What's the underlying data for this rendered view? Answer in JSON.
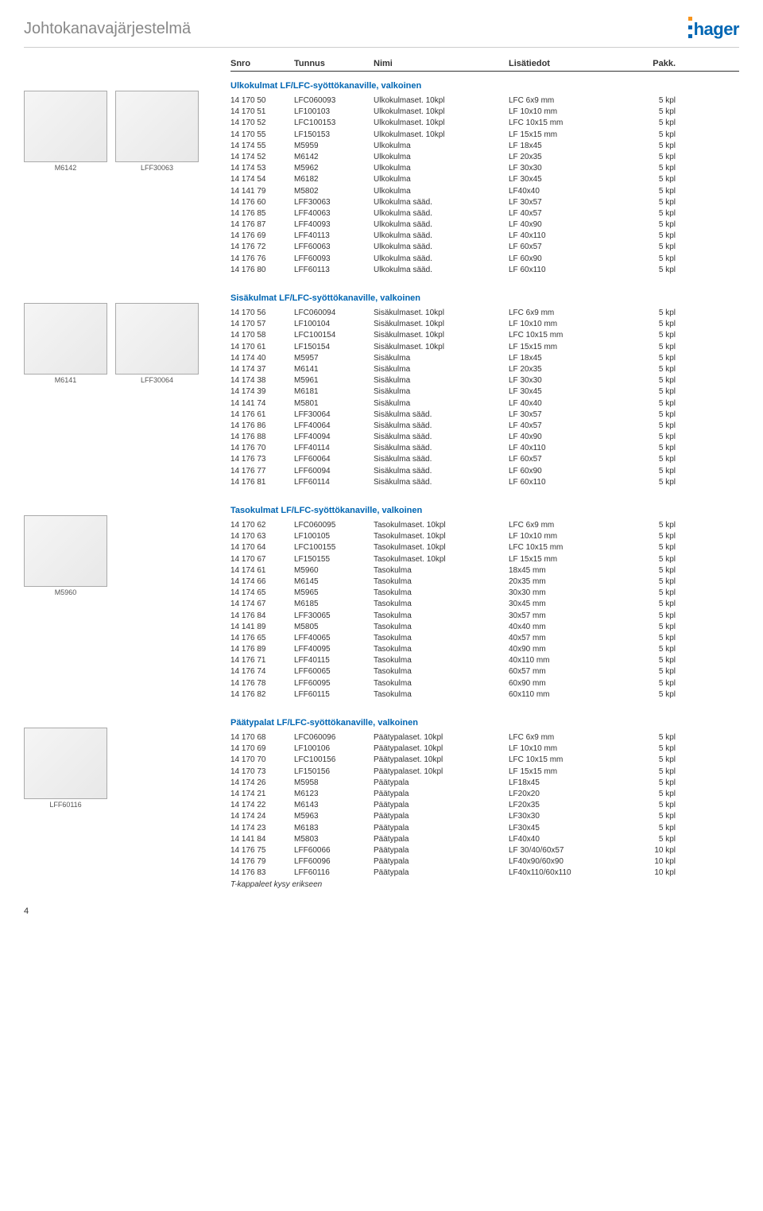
{
  "brand": "hager",
  "page_title": "Johtokanavajärjestelmä",
  "columns": {
    "snro": "Snro",
    "tunnus": "Tunnus",
    "nimi": "Nimi",
    "lisa": "Lisätiedot",
    "pakk": "Pakk."
  },
  "page_number": "4",
  "sections": [
    {
      "title": "Ulkokulmat LF/LFC-syöttökanaville, valkoinen",
      "images": [
        {
          "cap": "M6142"
        },
        {
          "cap": "LFF30063"
        }
      ],
      "rows": [
        [
          "14 170 50",
          "LFC060093",
          "Ulkokulmaset. 10kpl",
          "LFC 6x9 mm",
          "5 kpl"
        ],
        [
          "14 170 51",
          "LF100103",
          "Ulkokulmaset. 10kpl",
          "LF 10x10 mm",
          "5 kpl"
        ],
        [
          "14 170 52",
          "LFC100153",
          "Ulkokulmaset. 10kpl",
          "LFC 10x15 mm",
          "5 kpl"
        ],
        [
          "14 170 55",
          "LF150153",
          "Ulkokulmaset. 10kpl",
          "LF 15x15 mm",
          "5 kpl"
        ],
        [
          "14 174 55",
          "M5959",
          "Ulkokulma",
          "LF 18x45",
          "5 kpl"
        ],
        [
          "14 174 52",
          "M6142",
          "Ulkokulma",
          "LF 20x35",
          "5 kpl"
        ],
        [
          "14 174 53",
          "M5962",
          "Ulkokulma",
          "LF 30x30",
          "5 kpl"
        ],
        [
          "14 174 54",
          "M6182",
          "Ulkokulma",
          "LF 30x45",
          "5 kpl"
        ],
        [
          "14 141 79",
          "M5802",
          "Ulkokulma",
          "LF40x40",
          "5 kpl"
        ],
        [
          "14 176 60",
          "LFF30063",
          "Ulkokulma sääd.",
          "LF 30x57",
          "5 kpl"
        ],
        [
          "14 176 85",
          "LFF40063",
          "Ulkokulma sääd.",
          "LF 40x57",
          "5 kpl"
        ],
        [
          "14 176 87",
          "LFF40093",
          "Ulkokulma sääd.",
          "LF 40x90",
          "5 kpl"
        ],
        [
          "14 176 69",
          "LFF40113",
          "Ulkokulma sääd.",
          "LF 40x110",
          "5 kpl"
        ],
        [
          "14 176 72",
          "LFF60063",
          "Ulkokulma sääd.",
          "LF 60x57",
          "5 kpl"
        ],
        [
          "14 176 76",
          "LFF60093",
          "Ulkokulma sääd.",
          "LF 60x90",
          "5 kpl"
        ],
        [
          "14 176 80",
          "LFF60113",
          "Ulkokulma sääd.",
          "LF 60x110",
          "5 kpl"
        ]
      ]
    },
    {
      "title": "Sisäkulmat LF/LFC-syöttökanaville, valkoinen",
      "images": [
        {
          "cap": "M6141"
        },
        {
          "cap": "LFF30064"
        }
      ],
      "rows": [
        [
          "14 170 56",
          "LFC060094",
          "Sisäkulmaset. 10kpl",
          "LFC 6x9 mm",
          "5 kpl"
        ],
        [
          "14 170 57",
          "LF100104",
          "Sisäkulmaset. 10kpl",
          "LF 10x10 mm",
          "5 kpl"
        ],
        [
          "14 170 58",
          "LFC100154",
          "Sisäkulmaset. 10kpl",
          "LFC 10x15 mm",
          "5 kpl"
        ],
        [
          "14 170 61",
          "LF150154",
          "Sisäkulmaset. 10kpl",
          "LF 15x15 mm",
          "5 kpl"
        ],
        [
          "14 174 40",
          "M5957",
          "Sisäkulma",
          "LF 18x45",
          "5 kpl"
        ],
        [
          "14 174 37",
          "M6141",
          "Sisäkulma",
          "LF 20x35",
          "5 kpl"
        ],
        [
          "14 174 38",
          "M5961",
          "Sisäkulma",
          "LF 30x30",
          "5 kpl"
        ],
        [
          "14 174 39",
          "M6181",
          "Sisäkulma",
          "LF 30x45",
          "5 kpl"
        ],
        [
          "14 141 74",
          "M5801",
          "Sisäkulma",
          "LF 40x40",
          "5 kpl"
        ],
        [
          "14 176 61",
          "LFF30064",
          "Sisäkulma sääd.",
          "LF 30x57",
          "5 kpl"
        ],
        [
          "14 176 86",
          "LFF40064",
          "Sisäkulma sääd.",
          "LF 40x57",
          "5 kpl"
        ],
        [
          "14 176 88",
          "LFF40094",
          "Sisäkulma sääd.",
          "LF 40x90",
          "5 kpl"
        ],
        [
          "14 176 70",
          "LFF40114",
          "Sisäkulma sääd.",
          "LF 40x110",
          "5 kpl"
        ],
        [
          "14 176 73",
          "LFF60064",
          "Sisäkulma sääd.",
          "LF 60x57",
          "5 kpl"
        ],
        [
          "14 176 77",
          "LFF60094",
          "Sisäkulma sääd.",
          "LF 60x90",
          "5 kpl"
        ],
        [
          "14 176 81",
          "LFF60114",
          "Sisäkulma sääd.",
          "LF 60x110",
          "5 kpl"
        ]
      ]
    },
    {
      "title": "Tasokulmat LF/LFC-syöttökanaville, valkoinen",
      "images": [
        {
          "cap": "M5960"
        }
      ],
      "rows": [
        [
          "14 170 62",
          "LFC060095",
          "Tasokulmaset. 10kpl",
          "LFC 6x9 mm",
          "5 kpl"
        ],
        [
          "14 170 63",
          "LF100105",
          "Tasokulmaset. 10kpl",
          "LF 10x10 mm",
          "5 kpl"
        ],
        [
          "14 170 64",
          "LFC100155",
          "Tasokulmaset. 10kpl",
          "LFC 10x15 mm",
          "5 kpl"
        ],
        [
          "14 170 67",
          "LF150155",
          "Tasokulmaset. 10kpl",
          "LF 15x15 mm",
          "5 kpl"
        ],
        [
          "14 174 61",
          "M5960",
          "Tasokulma",
          "18x45 mm",
          "5 kpl"
        ],
        [
          "14 174 66",
          "M6145",
          "Tasokulma",
          "20x35 mm",
          "5 kpl"
        ],
        [
          "14 174 65",
          "M5965",
          "Tasokulma",
          "30x30 mm",
          "5 kpl"
        ],
        [
          "14 174 67",
          "M6185",
          "Tasokulma",
          "30x45 mm",
          "5 kpl"
        ],
        [
          "14 176 84",
          "LFF30065",
          "Tasokulma",
          "30x57 mm",
          "5 kpl"
        ],
        [
          "14 141 89",
          "M5805",
          "Tasokulma",
          "40x40 mm",
          "5 kpl"
        ],
        [
          "14 176 65",
          "LFF40065",
          "Tasokulma",
          "40x57 mm",
          "5 kpl"
        ],
        [
          "14 176 89",
          "LFF40095",
          "Tasokulma",
          "40x90 mm",
          "5 kpl"
        ],
        [
          "14 176 71",
          "LFF40115",
          "Tasokulma",
          "40x110 mm",
          "5 kpl"
        ],
        [
          "14 176 74",
          "LFF60065",
          "Tasokulma",
          "60x57 mm",
          "5 kpl"
        ],
        [
          "14 176 78",
          "LFF60095",
          "Tasokulma",
          "60x90 mm",
          "5 kpl"
        ],
        [
          "14 176 82",
          "LFF60115",
          "Tasokulma",
          "60x110 mm",
          "5 kpl"
        ]
      ]
    },
    {
      "title": "Päätypalat LF/LFC-syöttökanaville, valkoinen",
      "images": [
        {
          "cap": "LFF60116"
        }
      ],
      "rows": [
        [
          "14 170 68",
          "LFC060096",
          "Päätypalaset. 10kpl",
          "LFC 6x9 mm",
          "5 kpl"
        ],
        [
          "14 170 69",
          "LF100106",
          "Päätypalaset. 10kpl",
          "LF 10x10 mm",
          "5 kpl"
        ],
        [
          "14 170 70",
          "LFC100156",
          "Päätypalaset. 10kpl",
          "LFC 10x15 mm",
          "5 kpl"
        ],
        [
          "14 170 73",
          "LF150156",
          "Päätypalaset. 10kpl",
          "LF 15x15 mm",
          "5 kpl"
        ],
        [
          "14 174 26",
          "M5958",
          "Päätypala",
          "LF18x45",
          "5 kpl"
        ],
        [
          "14 174 21",
          "M6123",
          "Päätypala",
          "LF20x20",
          "5 kpl"
        ],
        [
          "14 174 22",
          "M6143",
          "Päätypala",
          "LF20x35",
          "5 kpl"
        ],
        [
          "14 174 24",
          "M5963",
          "Päätypala",
          "LF30x30",
          "5 kpl"
        ],
        [
          "14 174 23",
          "M6183",
          "Päätypala",
          "LF30x45",
          "5 kpl"
        ],
        [
          "14 141 84",
          "M5803",
          "Päätypala",
          "LF40x40",
          "5 kpl"
        ],
        [
          "14 176 75",
          "LFF60066",
          "Päätypala",
          "LF 30/40/60x57",
          "10 kpl"
        ],
        [
          "14 176 79",
          "LFF60096",
          "Päätypala",
          "LF40x90/60x90",
          "10 kpl"
        ],
        [
          "14 176 83",
          "LFF60116",
          "Päätypala",
          "LF40x110/60x110",
          "10 kpl"
        ]
      ],
      "note": "T-kappaleet kysy erikseen"
    }
  ]
}
